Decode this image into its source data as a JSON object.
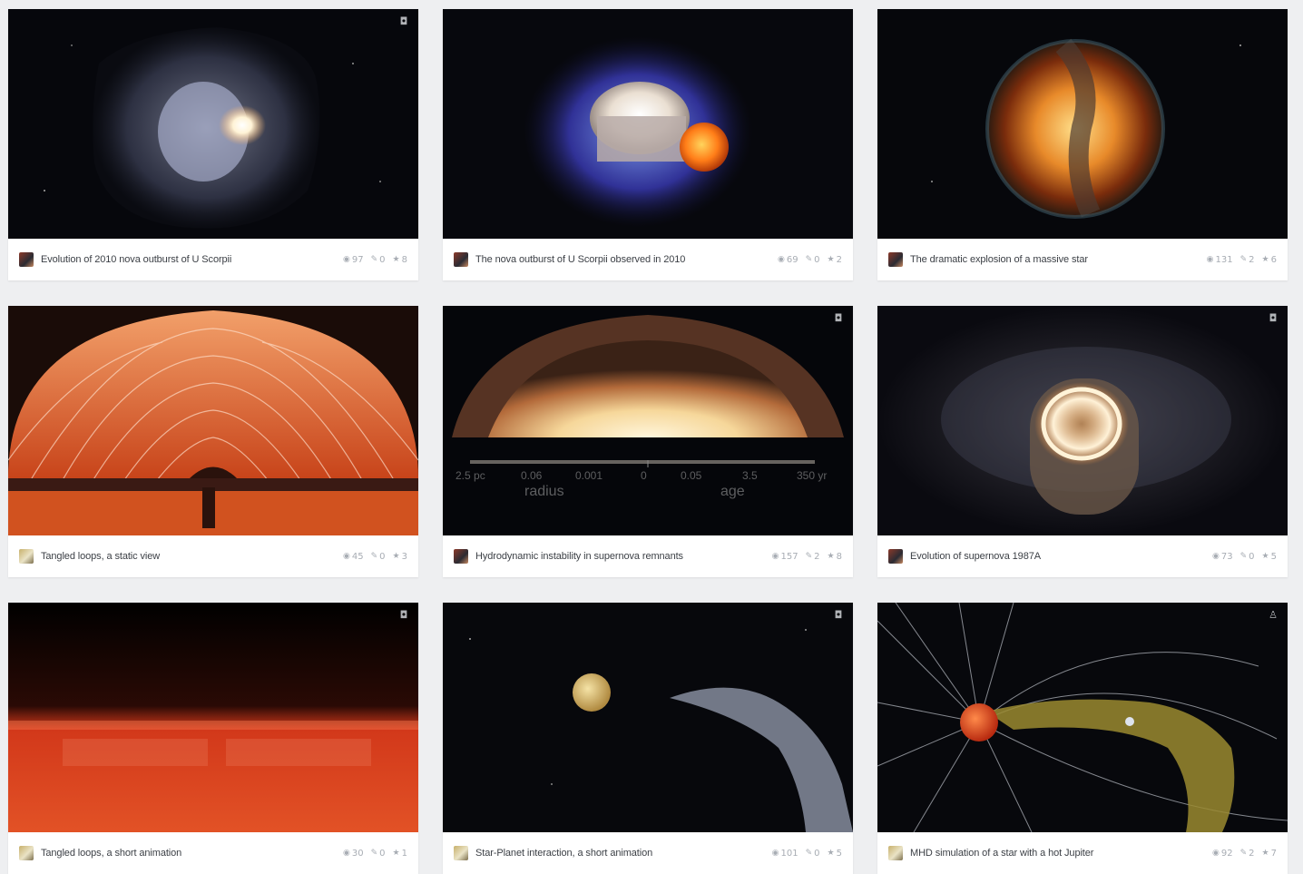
{
  "cards": [
    {
      "title": "Evolution of 2010 nova outburst of U Scorpii",
      "views": "97",
      "comments": "0",
      "likes": "8",
      "badge_icon": "cube-icon"
    },
    {
      "title": "The nova outburst of U Scorpii observed in 2010",
      "views": "69",
      "comments": "0",
      "likes": "2",
      "badge_icon": ""
    },
    {
      "title": "The dramatic explosion of a massive star",
      "views": "131",
      "comments": "2",
      "likes": "6",
      "badge_icon": ""
    },
    {
      "title": "Tangled loops, a static view",
      "views": "45",
      "comments": "0",
      "likes": "3",
      "badge_icon": ""
    },
    {
      "title": "Hydrodynamic instability in supernova remnants",
      "views": "157",
      "comments": "2",
      "likes": "8",
      "badge_icon": "cube-icon",
      "overlay": {
        "ticks": [
          "2.5 pc",
          "0.06",
          "0.001",
          "0",
          "0.05",
          "3.5",
          "350 yr"
        ],
        "radius_label": "radius",
        "age_label": "age"
      }
    },
    {
      "title": "Evolution of supernova 1987A",
      "views": "73",
      "comments": "0",
      "likes": "5",
      "badge_icon": "cube-icon"
    },
    {
      "title": "Tangled loops, a short animation",
      "views": "30",
      "comments": "0",
      "likes": "1",
      "badge_icon": "cube-icon"
    },
    {
      "title": "Star-Planet interaction, a short animation",
      "views": "101",
      "comments": "0",
      "likes": "5",
      "badge_icon": "cube-icon"
    },
    {
      "title": "MHD simulation of a star with a hot Jupiter",
      "views": "92",
      "comments": "2",
      "likes": "7",
      "badge_icon": "person-icon"
    }
  ],
  "icons": {
    "views": "eye-icon",
    "comments": "comment-icon",
    "likes": "star-icon"
  }
}
